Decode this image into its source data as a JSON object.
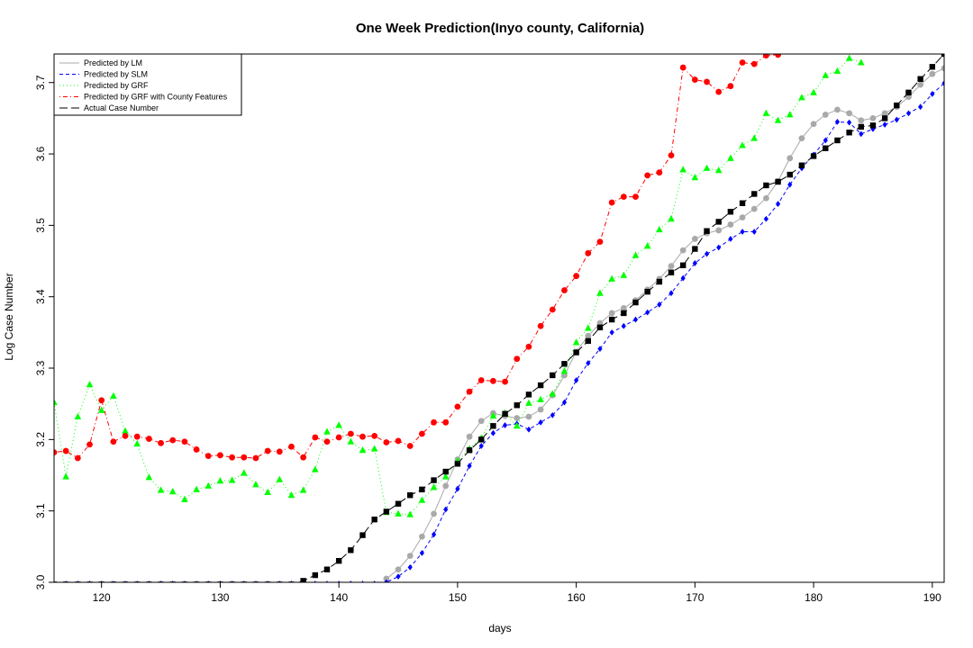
{
  "chart_data": {
    "type": "line",
    "title": "One Week Prediction(Inyo county, California)",
    "xlabel": "days",
    "ylabel": "Log Case Number",
    "xlim": [
      116,
      191
    ],
    "ylim": [
      3.0,
      3.74
    ],
    "x_ticks": [
      120,
      130,
      140,
      150,
      160,
      170,
      180,
      190
    ],
    "y_ticks": [
      3.0,
      3.1,
      3.2,
      3.3,
      3.4,
      3.5,
      3.6,
      3.7
    ],
    "legend_position": "top-left",
    "x": [
      116,
      117,
      118,
      119,
      120,
      121,
      122,
      123,
      124,
      125,
      126,
      127,
      128,
      129,
      130,
      131,
      132,
      133,
      134,
      135,
      136,
      137,
      138,
      139,
      140,
      141,
      142,
      143,
      144,
      145,
      146,
      147,
      148,
      149,
      150,
      151,
      152,
      153,
      154,
      155,
      156,
      157,
      158,
      159,
      160,
      161,
      162,
      163,
      164,
      165,
      166,
      167,
      168,
      169,
      170,
      171,
      172,
      173,
      174,
      175,
      176,
      177,
      178,
      179,
      180,
      181,
      182,
      183,
      184,
      185,
      186,
      187,
      188,
      189,
      190,
      191
    ],
    "series": [
      {
        "name": "Predicted by LM",
        "color": "#a9a9a9",
        "line_style": "solid",
        "marker": "circle",
        "values": [
          null,
          null,
          null,
          null,
          null,
          null,
          null,
          null,
          null,
          null,
          null,
          null,
          null,
          null,
          null,
          null,
          null,
          null,
          null,
          null,
          null,
          null,
          null,
          null,
          null,
          null,
          null,
          null,
          3.005,
          3.018,
          3.037,
          3.064,
          3.096,
          3.135,
          3.172,
          3.204,
          3.226,
          3.237,
          3.233,
          3.23,
          3.232,
          3.242,
          3.262,
          3.29,
          3.323,
          3.345,
          3.363,
          3.377,
          3.384,
          3.395,
          3.41,
          3.425,
          3.443,
          3.465,
          3.481,
          3.489,
          3.493,
          3.501,
          3.511,
          3.523,
          3.538,
          3.562,
          3.594,
          3.622,
          3.642,
          3.655,
          3.662,
          3.657,
          3.647,
          3.65,
          3.657,
          3.666,
          3.68,
          3.697,
          3.712,
          3.72
        ]
      },
      {
        "name": "Predicted by SLM",
        "color": "#0000ff",
        "line_style": "dashed",
        "marker": "diamond",
        "values": [
          2.998,
          2.998,
          2.998,
          2.998,
          2.998,
          2.998,
          2.998,
          2.998,
          2.998,
          2.998,
          2.998,
          2.998,
          2.998,
          2.998,
          2.998,
          2.998,
          2.998,
          2.998,
          2.998,
          2.998,
          2.998,
          2.998,
          2.998,
          2.998,
          2.998,
          2.998,
          2.998,
          2.998,
          3.0,
          3.008,
          3.021,
          3.041,
          3.067,
          3.102,
          3.131,
          3.163,
          3.191,
          3.209,
          3.22,
          3.222,
          3.214,
          3.224,
          3.234,
          3.252,
          3.283,
          3.307,
          3.327,
          3.35,
          3.359,
          3.368,
          3.378,
          3.389,
          3.405,
          3.426,
          3.447,
          3.46,
          3.469,
          3.481,
          3.491,
          3.491,
          3.509,
          3.53,
          3.557,
          3.58,
          3.599,
          3.619,
          3.645,
          3.644,
          3.628,
          3.635,
          3.641,
          3.648,
          3.657,
          3.666,
          3.684,
          3.699
        ]
      },
      {
        "name": "Predicted by GRF",
        "color": "#00ff00",
        "line_style": "dotted",
        "marker": "triangle",
        "values": [
          3.252,
          3.148,
          3.232,
          3.277,
          3.241,
          3.261,
          3.212,
          3.194,
          3.147,
          3.129,
          3.127,
          3.116,
          3.13,
          3.135,
          3.142,
          3.143,
          3.153,
          3.137,
          3.126,
          3.144,
          3.122,
          3.129,
          3.158,
          3.211,
          3.22,
          3.197,
          3.185,
          3.187,
          3.098,
          3.096,
          3.095,
          3.115,
          3.133,
          3.148,
          3.17,
          3.187,
          3.202,
          3.233,
          3.237,
          3.219,
          3.251,
          3.256,
          3.264,
          3.296,
          3.336,
          3.356,
          3.405,
          3.425,
          3.43,
          3.458,
          3.471,
          3.494,
          3.509,
          3.578,
          3.567,
          3.58,
          3.577,
          3.594,
          3.612,
          3.622,
          3.657,
          3.647,
          3.655,
          3.679,
          3.686,
          3.71,
          3.716,
          3.734,
          3.728,
          null,
          null,
          null,
          null,
          null,
          null,
          null
        ]
      },
      {
        "name": "Predicted by GRF with County Features",
        "color": "#ff0000",
        "line_style": "dotdash",
        "marker": "circle",
        "values": [
          3.182,
          3.184,
          3.174,
          3.193,
          3.255,
          3.197,
          3.205,
          3.204,
          3.201,
          3.195,
          3.199,
          3.197,
          3.186,
          3.177,
          3.178,
          3.175,
          3.175,
          3.174,
          3.184,
          3.183,
          3.19,
          3.175,
          3.203,
          3.197,
          3.203,
          3.208,
          3.204,
          3.205,
          3.196,
          3.198,
          3.191,
          3.208,
          3.224,
          3.224,
          3.246,
          3.267,
          3.283,
          3.282,
          3.281,
          3.313,
          3.33,
          3.359,
          3.382,
          3.409,
          3.429,
          3.461,
          3.477,
          3.532,
          3.54,
          3.54,
          3.57,
          3.574,
          3.598,
          3.721,
          3.704,
          3.701,
          3.687,
          3.695,
          3.728,
          3.726,
          3.738,
          3.739,
          null,
          null,
          null,
          null,
          null,
          null,
          null,
          null,
          null,
          null,
          null,
          null,
          null,
          null
        ]
      },
      {
        "name": "Actual Case Number",
        "color": "#000000",
        "line_style": "longdash",
        "marker": "square",
        "values": [
          2.997,
          2.997,
          2.997,
          2.997,
          2.997,
          2.997,
          2.997,
          2.997,
          2.997,
          2.997,
          2.997,
          2.997,
          2.997,
          2.997,
          2.997,
          2.997,
          2.997,
          2.997,
          2.997,
          2.997,
          2.997,
          3.002,
          3.01,
          3.018,
          3.03,
          3.045,
          3.066,
          3.088,
          3.099,
          3.11,
          3.122,
          3.13,
          3.143,
          3.155,
          3.166,
          3.185,
          3.2,
          3.219,
          3.236,
          3.248,
          3.263,
          3.276,
          3.29,
          3.306,
          3.322,
          3.338,
          3.357,
          3.368,
          3.377,
          3.392,
          3.407,
          3.421,
          3.434,
          3.444,
          3.467,
          3.492,
          3.505,
          3.519,
          3.531,
          3.544,
          3.556,
          3.561,
          3.571,
          3.584,
          3.597,
          3.608,
          3.619,
          3.63,
          3.638,
          3.64,
          3.65,
          3.668,
          3.686,
          3.705,
          3.722,
          3.74
        ]
      }
    ]
  }
}
